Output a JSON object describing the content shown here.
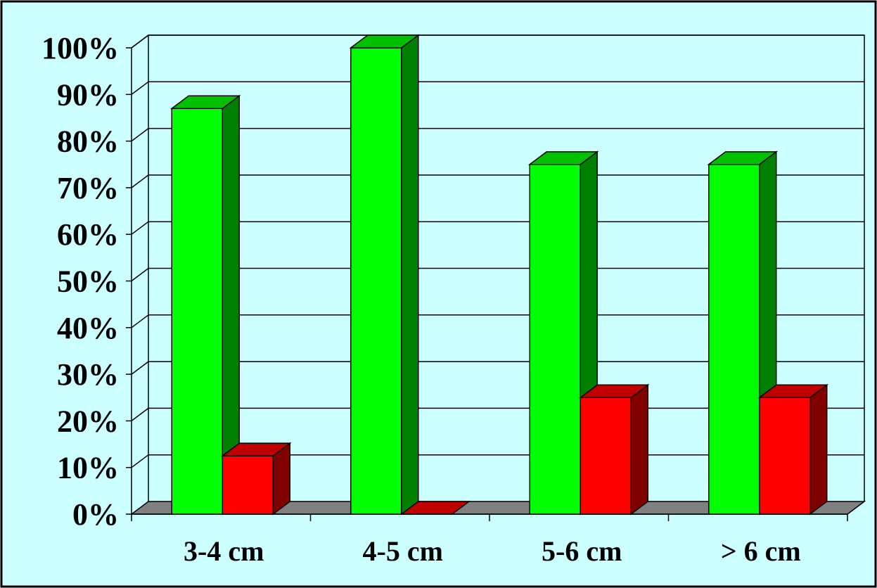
{
  "chart_data": {
    "type": "bar",
    "title": "",
    "xlabel": "",
    "ylabel": "",
    "categories": [
      "3-4 cm",
      "4-5 cm",
      "5-6 cm",
      "> 6 cm"
    ],
    "series": [
      {
        "values": [
          0.87,
          1.0,
          0.75,
          0.75
        ]
      },
      {
        "values": [
          0.125,
          0.0,
          0.25,
          0.25
        ]
      }
    ],
    "ylim": [
      0,
      1
    ],
    "yticks": [
      "0%",
      "10%",
      "20%",
      "30%",
      "40%",
      "50%",
      "60%",
      "70%",
      "80%",
      "90%",
      "100%"
    ],
    "grid": true,
    "legend": "none",
    "three_d": true
  },
  "colors": {
    "page_background": "#ffffff",
    "frame": "#000000",
    "plot_background": "#ccffff",
    "floor": "#808080",
    "gridline": "#000000",
    "series_front": [
      "#00ff00",
      "#ff0000"
    ],
    "series_top": [
      "#00c000",
      "#c00000"
    ],
    "series_side": [
      "#008000",
      "#800000"
    ]
  }
}
